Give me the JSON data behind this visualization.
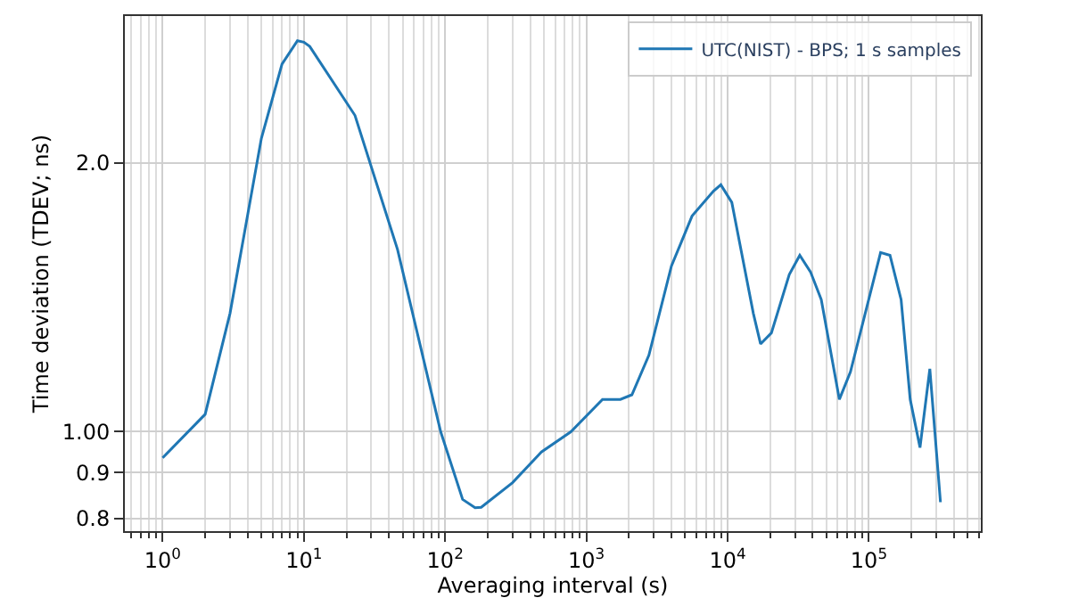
{
  "chart_data": {
    "type": "line",
    "xlabel": "Averaging interval (s)",
    "ylabel": "Time deviation (TDEV; ns)",
    "log": "xy",
    "grid": true,
    "legend": "top right",
    "xlim": [
      0.54,
      620000
    ],
    "ylim": [
      0.774,
      2.92
    ],
    "xticks": [
      {
        "value": 1,
        "label": "10$^{0}$"
      },
      {
        "value": 10,
        "label": "10$^{1}$"
      },
      {
        "value": 100,
        "label": "10$^{2}$"
      },
      {
        "value": 1000,
        "label": "10$^{3}$"
      },
      {
        "value": 10000,
        "label": "10$^{4}$"
      },
      {
        "value": 100000,
        "label": "10$^{5}$"
      }
    ],
    "yticks": [
      0.8,
      0.9,
      {
        "value": 1,
        "label": "1.00"
      },
      {
        "value": 2,
        "label": "2.0"
      }
    ],
    "x": [
      1,
      2,
      3,
      5,
      7,
      9,
      10,
      11,
      23,
      46,
      93,
      133,
      163,
      180,
      300,
      480,
      776,
      1300,
      1740,
      2100,
      2770,
      4000,
      5600,
      7950,
      8950,
      10700,
      15200,
      17100,
      20400,
      27300,
      32400,
      38600,
      46000,
      61800,
      74000,
      121000,
      141000,
      169000,
      196000,
      230000,
      270000,
      321000
    ],
    "series": [
      {
        "name": "UTC(NIST) - BPS; 1 s samples",
        "color": "#1f77b4",
        "values": [
          0.935,
          1.046,
          1.357,
          2.13,
          2.58,
          2.74,
          2.73,
          2.7,
          2.26,
          1.6,
          1.0,
          0.84,
          0.822,
          0.823,
          0.877,
          0.949,
          1.0,
          1.087,
          1.087,
          1.1,
          1.218,
          1.533,
          1.744,
          1.86,
          1.89,
          1.806,
          1.357,
          1.254,
          1.29,
          1.5,
          1.576,
          1.51,
          1.406,
          1.087,
          1.167,
          1.587,
          1.576,
          1.406,
          1.087,
          0.96,
          1.176,
          0.834
        ]
      }
    ]
  }
}
